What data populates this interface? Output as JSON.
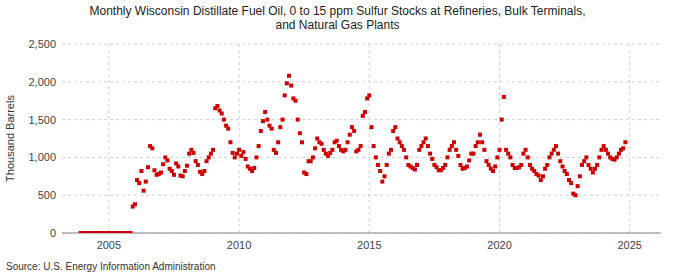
{
  "chart_data": {
    "type": "scatter",
    "title": "Monthly Wisconsin Distillate Fuel Oil, 0 to 15 ppm Sulfur Stocks at Refineries, Bulk Terminals,\nand Natural Gas Plants",
    "y_label": "Thousand Barrels",
    "source": "Source: U.S. Energy Information Administration",
    "color": "#cc0000",
    "marker": "square",
    "grid": true,
    "xlim": [
      2003.2,
      2026.2
    ],
    "xticks": [
      2005,
      2010,
      2015,
      2020,
      2025
    ],
    "ylim": [
      0,
      2500
    ],
    "yticks": [
      0,
      500,
      {
        "value": 1000,
        "label": "1,000"
      },
      {
        "value": 1500,
        "label": "1,500"
      },
      {
        "value": 2000,
        "label": "2,000"
      },
      {
        "value": 2500,
        "label": "2,500"
      }
    ],
    "x": [
      2003.917,
      2004.0,
      2004.083,
      2004.167,
      2004.25,
      2004.333,
      2004.417,
      2004.5,
      2004.583,
      2004.667,
      2004.75,
      2004.833,
      2004.917,
      2005.0,
      2005.083,
      2005.167,
      2005.25,
      2005.333,
      2005.417,
      2005.5,
      2005.583,
      2005.667,
      2005.75,
      2005.833,
      2005.917,
      2006.0,
      2006.083,
      2006.167,
      2006.25,
      2006.333,
      2006.417,
      2006.5,
      2006.583,
      2006.667,
      2006.75,
      2006.833,
      2006.917,
      2007.0,
      2007.083,
      2007.167,
      2007.25,
      2007.333,
      2007.417,
      2007.5,
      2007.583,
      2007.667,
      2007.75,
      2007.833,
      2007.917,
      2008.0,
      2008.083,
      2008.167,
      2008.25,
      2008.333,
      2008.417,
      2008.5,
      2008.583,
      2008.667,
      2008.75,
      2008.833,
      2008.917,
      2009.0,
      2009.083,
      2009.167,
      2009.25,
      2009.333,
      2009.417,
      2009.5,
      2009.583,
      2009.667,
      2009.75,
      2009.833,
      2009.917,
      2010.0,
      2010.083,
      2010.167,
      2010.25,
      2010.333,
      2010.417,
      2010.5,
      2010.583,
      2010.667,
      2010.75,
      2010.833,
      2010.917,
      2011.0,
      2011.083,
      2011.167,
      2011.25,
      2011.333,
      2011.417,
      2011.5,
      2011.583,
      2011.667,
      2011.75,
      2011.833,
      2011.917,
      2012.0,
      2012.083,
      2012.167,
      2012.25,
      2012.333,
      2012.417,
      2012.5,
      2012.583,
      2012.667,
      2012.75,
      2012.833,
      2012.917,
      2013.0,
      2013.083,
      2013.167,
      2013.25,
      2013.333,
      2013.417,
      2013.5,
      2013.583,
      2013.667,
      2013.75,
      2013.833,
      2013.917,
      2014.0,
      2014.083,
      2014.167,
      2014.25,
      2014.333,
      2014.417,
      2014.5,
      2014.583,
      2014.667,
      2014.75,
      2014.833,
      2014.917,
      2015.0,
      2015.083,
      2015.167,
      2015.25,
      2015.333,
      2015.417,
      2015.5,
      2015.583,
      2015.667,
      2015.75,
      2015.833,
      2015.917,
      2016.0,
      2016.083,
      2016.167,
      2016.25,
      2016.333,
      2016.417,
      2016.5,
      2016.583,
      2016.667,
      2016.75,
      2016.833,
      2016.917,
      2017.0,
      2017.083,
      2017.167,
      2017.25,
      2017.333,
      2017.417,
      2017.5,
      2017.583,
      2017.667,
      2017.75,
      2017.833,
      2017.917,
      2018.0,
      2018.083,
      2018.167,
      2018.25,
      2018.333,
      2018.417,
      2018.5,
      2018.583,
      2018.667,
      2018.75,
      2018.833,
      2018.917,
      2019.0,
      2019.083,
      2019.167,
      2019.25,
      2019.333,
      2019.417,
      2019.5,
      2019.583,
      2019.667,
      2019.75,
      2019.833,
      2019.917,
      2020.0,
      2020.083,
      2020.167,
      2020.25,
      2020.333,
      2020.417,
      2020.5,
      2020.583,
      2020.667,
      2020.75,
      2020.833,
      2020.917,
      2021.0,
      2021.083,
      2021.167,
      2021.25,
      2021.333,
      2021.417,
      2021.5,
      2021.583,
      2021.667,
      2021.75,
      2021.833,
      2021.917,
      2022.0,
      2022.083,
      2022.167,
      2022.25,
      2022.333,
      2022.417,
      2022.5,
      2022.583,
      2022.667,
      2022.75,
      2022.833,
      2022.917,
      2023.0,
      2023.083,
      2023.167,
      2023.25,
      2023.333,
      2023.417,
      2023.5,
      2023.583,
      2023.667,
      2023.75,
      2023.833,
      2023.917,
      2024.0,
      2024.083,
      2024.167,
      2024.25,
      2024.333,
      2024.417,
      2024.5,
      2024.583,
      2024.667,
      2024.75,
      2024.833
    ],
    "values": [
      0,
      0,
      0,
      0,
      0,
      0,
      0,
      0,
      0,
      0,
      0,
      0,
      0,
      0,
      0,
      0,
      0,
      0,
      0,
      0,
      0,
      0,
      0,
      0,
      350,
      380,
      700,
      660,
      820,
      560,
      680,
      870,
      1150,
      1120,
      830,
      770,
      780,
      800,
      910,
      1000,
      960,
      850,
      820,
      770,
      920,
      880,
      760,
      750,
      820,
      890,
      1050,
      1100,
      1060,
      950,
      900,
      810,
      780,
      820,
      950,
      1000,
      1050,
      1100,
      1650,
      1680,
      1620,
      1580,
      1500,
      1420,
      1380,
      1200,
      1060,
      1000,
      1050,
      1100,
      1020,
      1070,
      980,
      880,
      850,
      820,
      860,
      1000,
      1150,
      1350,
      1480,
      1600,
      1500,
      1420,
      1380,
      1100,
      1060,
      1200,
      1400,
      1500,
      1820,
      1980,
      2080,
      1950,
      1780,
      1750,
      1500,
      1320,
      1200,
      800,
      780,
      950,
      950,
      1000,
      1120,
      1250,
      1200,
      1180,
      1100,
      1050,
      1020,
      1060,
      1100,
      1200,
      1220,
      1150,
      1100,
      1080,
      1100,
      1200,
      1300,
      1400,
      1350,
      1080,
      1100,
      1150,
      1550,
      1600,
      1780,
      1820,
      1400,
      1150,
      1000,
      900,
      820,
      680,
      750,
      900,
      1050,
      1100,
      1350,
      1400,
      1250,
      1200,
      1150,
      1100,
      1000,
      900,
      880,
      860,
      840,
      900,
      1100,
      1150,
      1200,
      1250,
      1150,
      1050,
      980,
      900,
      870,
      830,
      830,
      860,
      900,
      1000,
      1100,
      1150,
      1200,
      1100,
      1020,
      900,
      850,
      860,
      880,
      960,
      1050,
      1050,
      1150,
      1200,
      1300,
      1200,
      1100,
      950,
      900,
      850,
      820,
      880,
      1000,
      1100,
      1500,
      1800,
      1100,
      1050,
      1000,
      900,
      860,
      860,
      870,
      900,
      1050,
      1100,
      1000,
      900,
      850,
      820,
      780,
      760,
      700,
      750,
      850,
      900,
      1000,
      1050,
      1100,
      1150,
      1050,
      950,
      880,
      820,
      780,
      700,
      660,
      520,
      500,
      620,
      750,
      900,
      950,
      1000,
      900,
      850,
      800,
      850,
      900,
      1000,
      1100,
      1150,
      1100,
      1050,
      1000,
      980,
      970,
      1000,
      1050,
      1100,
      1120,
      1200
    ]
  }
}
